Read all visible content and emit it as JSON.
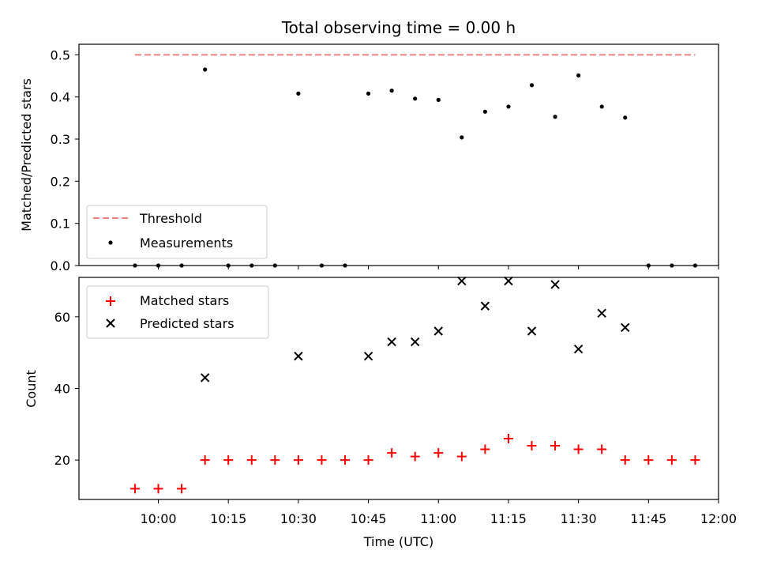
{
  "chart_data": [
    {
      "type": "scatter",
      "title": "Total observing time = 0.00 h",
      "xlabel": "",
      "ylabel": "Matched/Predicted stars",
      "ylim": [
        0,
        0.525
      ],
      "yticks": [
        "0.0",
        "0.1",
        "0.2",
        "0.3",
        "0.4",
        "0.5"
      ],
      "threshold": {
        "name": "Threshold",
        "value": 0.5,
        "color": "#f08080",
        "x_start": "09:55",
        "x_end": "11:55"
      },
      "series": [
        {
          "name": "Measurements",
          "color": "#000000",
          "x": [
            "09:55",
            "10:00",
            "10:05",
            "10:10",
            "10:15",
            "10:20",
            "10:25",
            "10:30",
            "10:35",
            "10:40",
            "10:45",
            "10:50",
            "10:55",
            "11:00",
            "11:05",
            "11:10",
            "11:15",
            "11:20",
            "11:25",
            "11:30",
            "11:35",
            "11:40",
            "11:45",
            "11:50",
            "11:55"
          ],
          "y": [
            0,
            0,
            0,
            0.465,
            0,
            0,
            0,
            0.408,
            0,
            0,
            0.408,
            0.415,
            0.396,
            0.393,
            0.304,
            0.365,
            0.377,
            0.428,
            0.353,
            0.451,
            0.377,
            0.351,
            0,
            0,
            0
          ]
        }
      ],
      "legend": "lower-left",
      "grid": false
    },
    {
      "type": "scatter",
      "xlabel": "Time (UTC)",
      "ylabel": "Count",
      "ylim": [
        9,
        71
      ],
      "yticks": [
        "20",
        "40",
        "60"
      ],
      "xticks": [
        "10:00",
        "10:15",
        "10:30",
        "10:45",
        "11:00",
        "11:15",
        "11:30",
        "11:45",
        "12:00"
      ],
      "xlim": [
        "09:43",
        "12:00"
      ],
      "series": [
        {
          "name": "Matched stars",
          "marker": "+",
          "color": "#ff0000",
          "x": [
            "09:55",
            "10:00",
            "10:05",
            "10:10",
            "10:15",
            "10:20",
            "10:25",
            "10:30",
            "10:35",
            "10:40",
            "10:45",
            "10:50",
            "10:55",
            "11:00",
            "11:05",
            "11:10",
            "11:15",
            "11:20",
            "11:25",
            "11:30",
            "11:35",
            "11:40",
            "11:45",
            "11:50",
            "11:55"
          ],
          "y": [
            12,
            12,
            12,
            20,
            20,
            20,
            20,
            20,
            20,
            20,
            20,
            22,
            21,
            22,
            21,
            23,
            26,
            24,
            24,
            23,
            23,
            20,
            20,
            20,
            20
          ]
        },
        {
          "name": "Predicted stars",
          "marker": "x",
          "color": "#000000",
          "x": [
            "10:10",
            "10:30",
            "10:45",
            "10:50",
            "10:55",
            "11:00",
            "11:05",
            "11:10",
            "11:15",
            "11:20",
            "11:25",
            "11:30",
            "11:35",
            "11:40"
          ],
          "y": [
            43,
            49,
            49,
            53,
            53,
            56,
            70,
            63,
            70,
            56,
            69,
            51,
            61,
            57
          ]
        }
      ],
      "legend": "upper-left",
      "grid": false
    }
  ]
}
